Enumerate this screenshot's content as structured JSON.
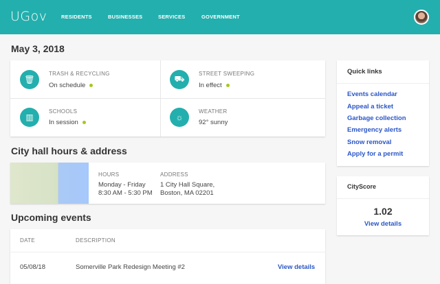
{
  "header": {
    "logo": "UGov",
    "nav": [
      "RESIDENTS",
      "BUSINESSES",
      "SERVICES",
      "GOVERNMENT"
    ]
  },
  "date": "May 3, 2018",
  "status": [
    {
      "icon": "trash-icon",
      "label": "TRASH & RECYCLING",
      "value": "On schedule",
      "ok": true
    },
    {
      "icon": "truck-icon",
      "label": "STREET SWEEPING",
      "value": "In effect",
      "ok": true
    },
    {
      "icon": "school-icon",
      "label": "SCHOOLS",
      "value": "In session",
      "ok": true
    },
    {
      "icon": "sun-icon",
      "label": "WEATHER",
      "value": "92° sunny",
      "ok": false
    }
  ],
  "colors": {
    "brand": "#23afad",
    "link": "#2a56c6",
    "ok": "#a3c91a"
  },
  "cityhall": {
    "title": "City hall hours & address",
    "hours_label": "HOURS",
    "hours": [
      "Monday - Friday",
      "8:30 AM - 5:30 PM"
    ],
    "address_label": "ADDRESS",
    "address": [
      "1 City Hall Square,",
      "Boston, MA 02201"
    ]
  },
  "events": {
    "title": "Upcoming events",
    "columns": [
      "DATE",
      "DESCRIPTION"
    ],
    "rows": [
      {
        "date": "05/08/18",
        "description": "Somerville Park Redesign Meeting #2",
        "action": "View details"
      }
    ]
  },
  "quicklinks": {
    "title": "Quick links",
    "items": [
      "Events calendar",
      "Appeal a ticket",
      "Garbage collection",
      "Emergency alerts",
      "Snow removal",
      "Apply for a permit"
    ]
  },
  "cityscore": {
    "title": "CityScore",
    "value": "1.02",
    "action": "View details"
  }
}
